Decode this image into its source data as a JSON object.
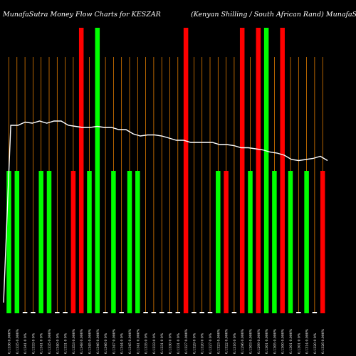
{
  "chart_data": {
    "type": "bar",
    "title_left": "MunafaSutra  Money Flow  Charts for KESZAR",
    "title_right": "(Kenyan  Shilling / South African  Rand) MunafaSutra.com",
    "colors": {
      "background": "#000000",
      "up": "#00ff00",
      "down": "#ff0000",
      "neutral": "#ffffff",
      "grid": "#ff8c00",
      "line": "#ffffff"
    },
    "bars": [
      {
        "label": "0.1336 0.000%",
        "color": "green",
        "height": 0.5
      },
      {
        "label": "0.1335 0.000%",
        "color": "green",
        "height": 0.5
      },
      {
        "label": "0.1341 0 0%",
        "color": "neutral",
        "height": 0.01
      },
      {
        "label": "0.1333 0 0%",
        "color": "neutral",
        "height": 0.01
      },
      {
        "label": "0.1341 0 0%",
        "color": "green",
        "height": 0.5
      },
      {
        "label": "0.1335 0.000%",
        "color": "green",
        "height": 0.5
      },
      {
        "label": "0.1340 0 0%",
        "color": "neutral",
        "height": 0.01
      },
      {
        "label": "0.1331 0 0%",
        "color": "neutral",
        "height": 0.01
      },
      {
        "label": "0.1353 0.000%",
        "color": "red",
        "height": 0.5
      },
      {
        "label": "0.1348 0.000%",
        "color": "red",
        "height": 1.0
      },
      {
        "label": "0.1345 0.000%",
        "color": "green",
        "height": 0.5
      },
      {
        "label": "0.1346 0.000%",
        "color": "green",
        "height": 1.0
      },
      {
        "label": "0.1346 0 0%",
        "color": "neutral",
        "height": 0.01
      },
      {
        "label": "0.1347 0.000%",
        "color": "green",
        "height": 0.5
      },
      {
        "label": "0.1344 0 0%",
        "color": "neutral",
        "height": 0.01
      },
      {
        "label": "0.1345 0.000%",
        "color": "green",
        "height": 0.5
      },
      {
        "label": "0.1341 0.000%",
        "color": "green",
        "height": 0.5
      },
      {
        "label": "0.1335 0 0%",
        "color": "neutral",
        "height": 0.01
      },
      {
        "label": "0.1333 0 0%",
        "color": "neutral",
        "height": 0.01
      },
      {
        "label": "0.1331 0 0%",
        "color": "neutral",
        "height": 0.01
      },
      {
        "label": "0.1330 0 0%",
        "color": "neutral",
        "height": 0.01
      },
      {
        "label": "0.1331 0 0%",
        "color": "neutral",
        "height": 0.01
      },
      {
        "label": "0.1327 0.000%",
        "color": "red",
        "height": 1.0
      },
      {
        "label": "0.1329 0 0%",
        "color": "neutral",
        "height": 0.01
      },
      {
        "label": "0.1320 0 0%",
        "color": "neutral",
        "height": 0.01
      },
      {
        "label": "0.1327 0 0%",
        "color": "neutral",
        "height": 0.01
      },
      {
        "label": "0.1323 0.000%",
        "color": "green",
        "height": 0.5
      },
      {
        "label": "0.1322 0.000%",
        "color": "red",
        "height": 0.5
      },
      {
        "label": "0.1316 0 0%",
        "color": "neutral",
        "height": 0.01
      },
      {
        "label": "0.1296 0.000%",
        "color": "red",
        "height": 1.0
      },
      {
        "label": "0.1303 0.000%",
        "color": "green",
        "height": 0.5
      },
      {
        "label": "0.1299 0.000%",
        "color": "red",
        "height": 1.0
      },
      {
        "label": "0.1301 0.000%",
        "color": "green",
        "height": 1.0
      },
      {
        "label": "0.1305 0.000%",
        "color": "green",
        "height": 0.5
      },
      {
        "label": "0.1300 0.000%",
        "color": "red",
        "height": 1.0
      },
      {
        "label": "0.1301 0.000%",
        "color": "green",
        "height": 0.5
      },
      {
        "label": "0.1301 0 0%",
        "color": "neutral",
        "height": 0.01
      },
      {
        "label": "0.1314 0.000%",
        "color": "green",
        "height": 0.5
      },
      {
        "label": "0.1320 0 0%",
        "color": "neutral",
        "height": 0.01
      },
      {
        "label": "0.1326 0.000%",
        "color": "red",
        "height": 0.5
      }
    ],
    "line": {
      "name": "",
      "values": [
        0.05,
        0.88,
        0.88,
        0.895,
        0.89,
        0.9,
        0.89,
        0.9,
        0.9,
        0.88,
        0.875,
        0.87,
        0.87,
        0.875,
        0.87,
        0.87,
        0.86,
        0.86,
        0.84,
        0.83,
        0.835,
        0.835,
        0.83,
        0.82,
        0.81,
        0.81,
        0.8,
        0.8,
        0.8,
        0.8,
        0.79,
        0.79,
        0.785,
        0.775,
        0.775,
        0.77,
        0.765,
        0.755,
        0.75,
        0.74,
        0.72,
        0.715,
        0.72,
        0.725,
        0.735,
        0.715
      ]
    }
  }
}
